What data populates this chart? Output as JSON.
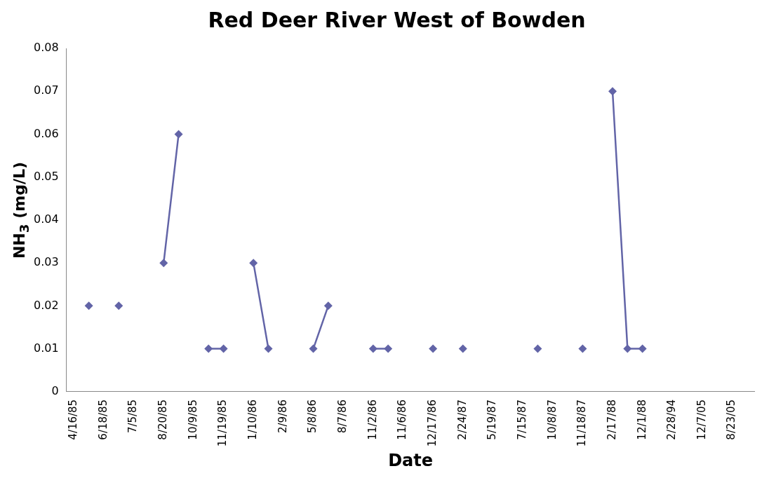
{
  "chart_data": {
    "type": "line",
    "title": "Red Deer River West of Bowden",
    "xlabel": "Date",
    "ylabel": "NH$_{3}$ (mg/L)",
    "categories": [
      "4/16/85",
      null,
      "6/18/85",
      null,
      "7/5/85",
      null,
      "8/20/85",
      null,
      "10/9/85",
      null,
      "11/19/85",
      null,
      "1/10/86",
      null,
      "2/9/86",
      null,
      "5/8/86",
      null,
      "8/7/86",
      null,
      "11/2/86",
      null,
      "11/6/86",
      null,
      "12/17/86",
      null,
      "2/24/87",
      null,
      "5/19/87",
      null,
      "7/15/87",
      null,
      "10/8/87",
      null,
      "11/18/87",
      null,
      "2/17/88",
      null,
      "12/1/88",
      null,
      "2/28/94",
      null,
      "12/7/05",
      null,
      "8/23/05",
      null
    ],
    "series": [
      {
        "color": "#6264a7",
        "values": [
          null,
          0.02,
          null,
          0.02,
          null,
          null,
          0.03,
          0.06,
          null,
          0.01,
          0.01,
          null,
          0.03,
          0.01,
          null,
          null,
          0.01,
          0.02,
          null,
          null,
          0.01,
          0.01,
          null,
          null,
          0.01,
          null,
          0.01,
          null,
          null,
          null,
          null,
          0.01,
          null,
          null,
          0.01,
          null,
          0.07,
          0.01,
          0.01,
          null,
          null,
          null,
          null,
          null,
          null,
          null
        ]
      }
    ],
    "ylim": [
      0,
      0.08
    ],
    "yticks": [
      0,
      0.01,
      0.02,
      0.03,
      0.04,
      0.05,
      0.06,
      0.07,
      0.08
    ],
    "grid": false,
    "legend": false,
    "marker": "diamond",
    "line_style": "solid"
  }
}
